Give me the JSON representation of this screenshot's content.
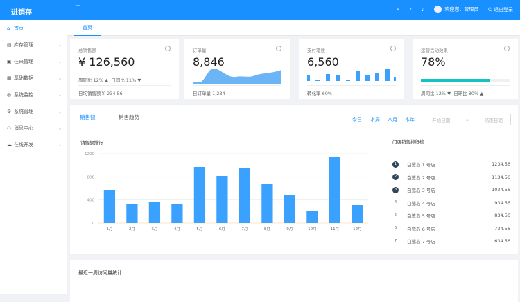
{
  "header": {
    "logo": "进销存",
    "welcome": "欢迎您，管理员",
    "logout": "退出登录"
  },
  "sidebar": {
    "items": [
      {
        "label": "首页",
        "icon": "home-icon"
      },
      {
        "label": "库存管理",
        "icon": "inventory-icon"
      },
      {
        "label": "往来管理",
        "icon": "contacts-icon"
      },
      {
        "label": "基础数据",
        "icon": "data-icon"
      },
      {
        "label": "系统监控",
        "icon": "monitor-icon"
      },
      {
        "label": "系统管理",
        "icon": "gear-icon"
      },
      {
        "label": "消息中心",
        "icon": "message-icon"
      },
      {
        "label": "在线开发",
        "icon": "cloud-icon"
      }
    ]
  },
  "tabs": {
    "home": "首页"
  },
  "cards": [
    {
      "title": "总销售额",
      "value": "¥ 126,560",
      "week": "周同比 12% ▲",
      "day": "日同比 11% ▼",
      "footer": "日均销售额￥ 234.56"
    },
    {
      "title": "订单量",
      "value": "8,846",
      "footer": "日订单量 1,234"
    },
    {
      "title": "支付笔数",
      "value": "6,560",
      "footer": "转化率 60%"
    },
    {
      "title": "运营活动效果",
      "value": "78%",
      "progress": 78,
      "week": "周同比 12% ▼",
      "day": "日环比 80% ▲"
    }
  ],
  "panel": {
    "tab1": "销售额",
    "tab2": "销售趋势",
    "ranges": [
      "今日",
      "本周",
      "本月",
      "本年"
    ],
    "start": "开始日期",
    "sep": "~",
    "end": "结束日期",
    "rank_title": "门店销售排行榜",
    "ranks": [
      {
        "n": "1",
        "name": "白鹭岛 1 号店",
        "v": "1234.56"
      },
      {
        "n": "2",
        "name": "白鹭岛 2 号店",
        "v": "1134.56"
      },
      {
        "n": "3",
        "name": "白鹭岛 3 号店",
        "v": "1034.56"
      },
      {
        "n": "4",
        "name": "白鹭岛 4 号店",
        "v": "934.56"
      },
      {
        "n": "5",
        "name": "白鹭岛 5 号店",
        "v": "834.56"
      },
      {
        "n": "6",
        "name": "白鹭岛 6 号店",
        "v": "734.56"
      },
      {
        "n": "7",
        "name": "白鹭岛 7 号店",
        "v": "634.56"
      }
    ]
  },
  "bottom": {
    "title": "最近一周访问量统计"
  },
  "chart_data": {
    "type": "bar",
    "title": "销售额排行",
    "categories": [
      "1月",
      "2月",
      "3月",
      "4月",
      "5月",
      "6月",
      "7月",
      "8月",
      "9月",
      "10月",
      "11月",
      "12月"
    ],
    "values": [
      564,
      336,
      360,
      336,
      972,
      816,
      960,
      672,
      492,
      204,
      1152,
      312
    ],
    "ylim": [
      0,
      1200
    ],
    "yticks": [
      "0",
      "400",
      "800",
      "1200"
    ],
    "color": "#3aa1ff",
    "grid": true
  }
}
